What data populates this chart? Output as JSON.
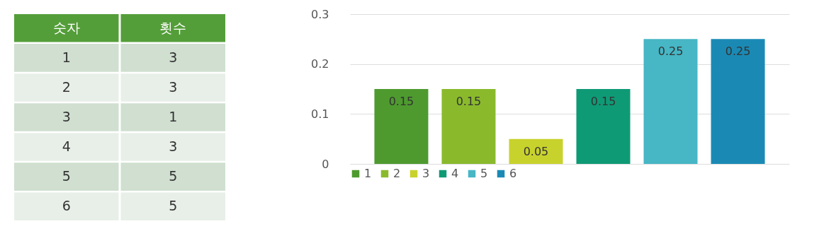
{
  "chart_data": [
    {
      "type": "heatmap",
      "ylabel": "숫자",
      "categories": [
        "횟수"
      ],
      "y_categories": [
        "1",
        "2",
        "3",
        "4",
        "5",
        "6"
      ],
      "cells": [
        [
          3
        ],
        [
          3
        ],
        [
          1
        ],
        [
          3
        ],
        [
          5
        ],
        [
          5
        ]
      ],
      "data_labels": true
    },
    {
      "type": "bar",
      "categories": [
        null
      ],
      "series": [
        {
          "name": "1",
          "color": "#4e9a2f",
          "values": [
            0.15
          ]
        },
        {
          "name": "2",
          "color": "#8aba2c",
          "values": [
            0.15
          ]
        },
        {
          "name": "3",
          "color": "#c8d22c",
          "values": [
            0.05
          ]
        },
        {
          "name": "4",
          "color": "#0f9a76",
          "values": [
            0.15
          ]
        },
        {
          "name": "5",
          "color": "#47b6c5",
          "values": [
            0.25
          ]
        },
        {
          "name": "6",
          "color": "#1a8ab5",
          "values": [
            0.25
          ]
        }
      ],
      "ylim": [
        0,
        0.3
      ],
      "yticks": [
        {
          "value": 0,
          "label": "0"
        },
        0.1,
        0.2,
        0.3
      ],
      "grid": "y",
      "legend": "bottom",
      "tick_labels": "y",
      "data_labels": true
    }
  ]
}
